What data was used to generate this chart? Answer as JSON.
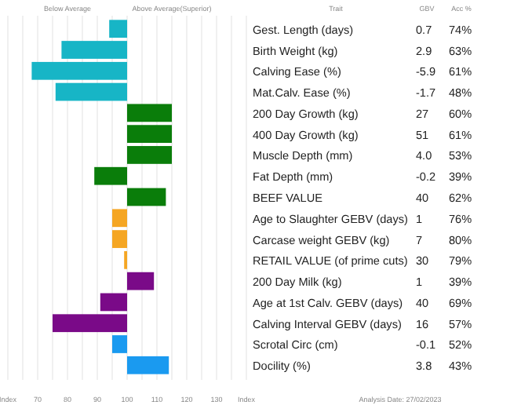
{
  "chart_data": {
    "type": "bar",
    "orientation": "horizontal",
    "categories": [
      "Gest. Length (days)",
      "Birth Weight (kg)",
      "Calving Ease (%)",
      "Mat.Calv. Ease (%)",
      "200 Day Growth (kg)",
      "400 Day Growth (kg)",
      "Muscle Depth (mm)",
      "Fat Depth (mm)",
      "BEEF VALUE",
      "Age to Slaughter GEBV (days)",
      "Carcase weight GEBV (kg)",
      "RETAIL VALUE (of prime cuts)",
      "200 Day Milk (kg)",
      "Age at 1st Calv. GEBV (days)",
      "Calving Interval GEBV (days)",
      "Scrotal Circ (cm)",
      "Docility (%)"
    ],
    "values": [
      -6,
      -22,
      -32,
      -24,
      15,
      15,
      15,
      -11,
      13,
      -5,
      -5,
      -1,
      9,
      -9,
      -25,
      -5,
      14
    ],
    "base": [
      100,
      100,
      100,
      100,
      100,
      100,
      100,
      100,
      100,
      100,
      100,
      100,
      100,
      100,
      100,
      100,
      100
    ],
    "colors": [
      "#17b5c6",
      "#17b5c6",
      "#17b5c6",
      "#17b5c6",
      "#0a7d0a",
      "#0a7d0a",
      "#0a7d0a",
      "#0a7d0a",
      "#0a7d0a",
      "#f5a623",
      "#f5a623",
      "#f5a623",
      "#7a0a88",
      "#7a0a88",
      "#7a0a88",
      "#1a9af0",
      "#1a9af0"
    ],
    "xlim": [
      60,
      140
    ],
    "xticks": [
      {
        "value": 60,
        "label": "Index"
      },
      {
        "value": 65,
        "label": null
      },
      70,
      {
        "value": 75,
        "label": null
      },
      80,
      {
        "value": 85,
        "label": null
      },
      90,
      {
        "value": 95,
        "label": null
      },
      100,
      {
        "value": 105,
        "label": null
      },
      110,
      {
        "value": 115,
        "label": null
      },
      120,
      {
        "value": 125,
        "label": null
      },
      130,
      {
        "value": 135,
        "label": null
      },
      {
        "value": 140,
        "label": "Index"
      }
    ],
    "grid": "x",
    "annotations": [
      "Below Average",
      "Above Average(Superior)",
      "Trait",
      "GBV",
      "Acc %",
      "Analysis Date: 27/02/2023",
      "0.7",
      "74%",
      "2.9",
      "63%",
      "-5.9",
      "61%",
      "-1.7",
      "48%",
      "27",
      "60%",
      "51",
      "61%",
      "4.0",
      "53%",
      "-0.2",
      "39%",
      "40",
      "62%",
      "1",
      "76%",
      "7",
      "80%",
      "30",
      "79%",
      "1",
      "39%",
      "40",
      "69%",
      "16",
      "57%",
      "-0.1",
      "52%",
      "3.8",
      "43%"
    ]
  }
}
